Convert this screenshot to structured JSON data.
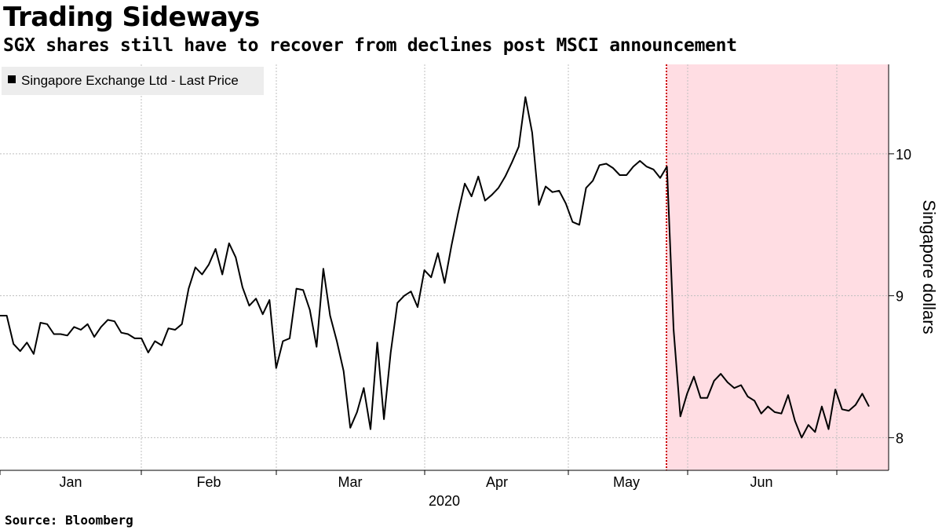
{
  "title": "Trading Sideways",
  "subtitle": "SGX shares still have to recover from declines post MSCI announcement",
  "source": "Source: Bloomberg",
  "colors": {
    "line": "#000000",
    "highlight": "#ffdde3",
    "marker": "#cc0000",
    "grid": "#bfbfbf"
  },
  "chart_data": {
    "type": "line",
    "title": "Trading Sideways",
    "subtitle": "SGX shares still have to recover from declines post MSCI announcement",
    "xlabel": "2020",
    "ylabel": "Singapore dollars",
    "y_axis_side": "right",
    "ylim": [
      7.77,
      10.63
    ],
    "yticks": [
      8,
      9,
      10
    ],
    "x_tick_labels": [
      "Jan",
      "Feb",
      "Mar",
      "Apr",
      "May",
      "Jun"
    ],
    "year_label": "2020",
    "grid": true,
    "legend": {
      "position": "top-left",
      "entries": [
        "Singapore Exchange Ltd - Last Price"
      ]
    },
    "highlight": {
      "start": "2020-05-22",
      "end": "2020-06-29",
      "note": "MSCI announcement"
    },
    "series": [
      {
        "name": "Singapore Exchange Ltd - Last Price",
        "values": [
          8.86,
          8.86,
          8.66,
          8.61,
          8.67,
          8.59,
          8.81,
          8.8,
          8.73,
          8.73,
          8.72,
          8.78,
          8.76,
          8.8,
          8.71,
          8.78,
          8.83,
          8.82,
          8.74,
          8.73,
          8.7,
          8.7,
          8.6,
          8.68,
          8.65,
          8.77,
          8.76,
          8.8,
          9.05,
          9.2,
          9.15,
          9.22,
          9.33,
          9.15,
          9.37,
          9.27,
          9.06,
          8.93,
          8.98,
          8.87,
          8.97,
          8.49,
          8.68,
          8.7,
          9.05,
          9.04,
          8.9,
          8.64,
          9.19,
          8.86,
          8.68,
          8.47,
          8.07,
          8.18,
          8.35,
          8.06,
          8.67,
          8.13,
          8.6,
          8.95,
          9.0,
          9.03,
          8.92,
          9.18,
          9.13,
          9.3,
          9.09,
          9.35,
          9.58,
          9.79,
          9.7,
          9.84,
          9.67,
          9.71,
          9.76,
          9.84,
          9.94,
          10.05,
          10.4,
          10.15,
          9.64,
          9.77,
          9.73,
          9.74,
          9.65,
          9.52,
          9.5,
          9.76,
          9.81,
          9.92,
          9.93,
          9.9,
          9.85,
          9.85,
          9.91,
          9.95,
          9.91,
          9.89,
          9.83,
          9.91,
          8.76,
          8.15,
          8.31,
          8.43,
          8.28,
          8.28,
          8.4,
          8.45,
          8.39,
          8.35,
          8.37,
          8.29,
          8.26,
          8.17,
          8.22,
          8.18,
          8.17,
          8.3,
          8.12,
          8.0,
          8.09,
          8.04,
          8.22,
          8.06,
          8.34,
          8.2,
          8.19,
          8.23,
          8.31,
          8.22
        ]
      }
    ]
  }
}
